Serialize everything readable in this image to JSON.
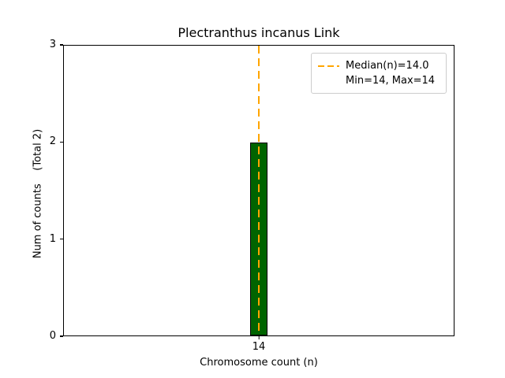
{
  "figure": {
    "title": "Plectranthus incanus Link",
    "xlabel": "Chromosome count (n)",
    "ylabel": "Num of counts    (Total 2)"
  },
  "legend": {
    "median_label": "Median(n)=14.0",
    "minmax_label": "Min=14, Max=14"
  },
  "chart_data": {
    "type": "bar",
    "title": "Plectranthus incanus Link",
    "xlabel": "Chromosome count (n)",
    "ylabel": "Num of counts    (Total 2)",
    "categories": [
      "14"
    ],
    "values": [
      2
    ],
    "total_counts": 2,
    "ylim": [
      0,
      3
    ],
    "yticks": [
      "0",
      "1",
      "2",
      "3"
    ],
    "xticks": [
      "14"
    ],
    "bar_color": "#006400",
    "bar_edge_color": "#000000",
    "median_line": {
      "value": 14.0,
      "color": "#FFA500",
      "style": "dashed"
    },
    "legend_position": "upper right",
    "annotations": [
      "Median(n)=14.0",
      "Min=14, Max=14"
    ],
    "grid": false
  }
}
